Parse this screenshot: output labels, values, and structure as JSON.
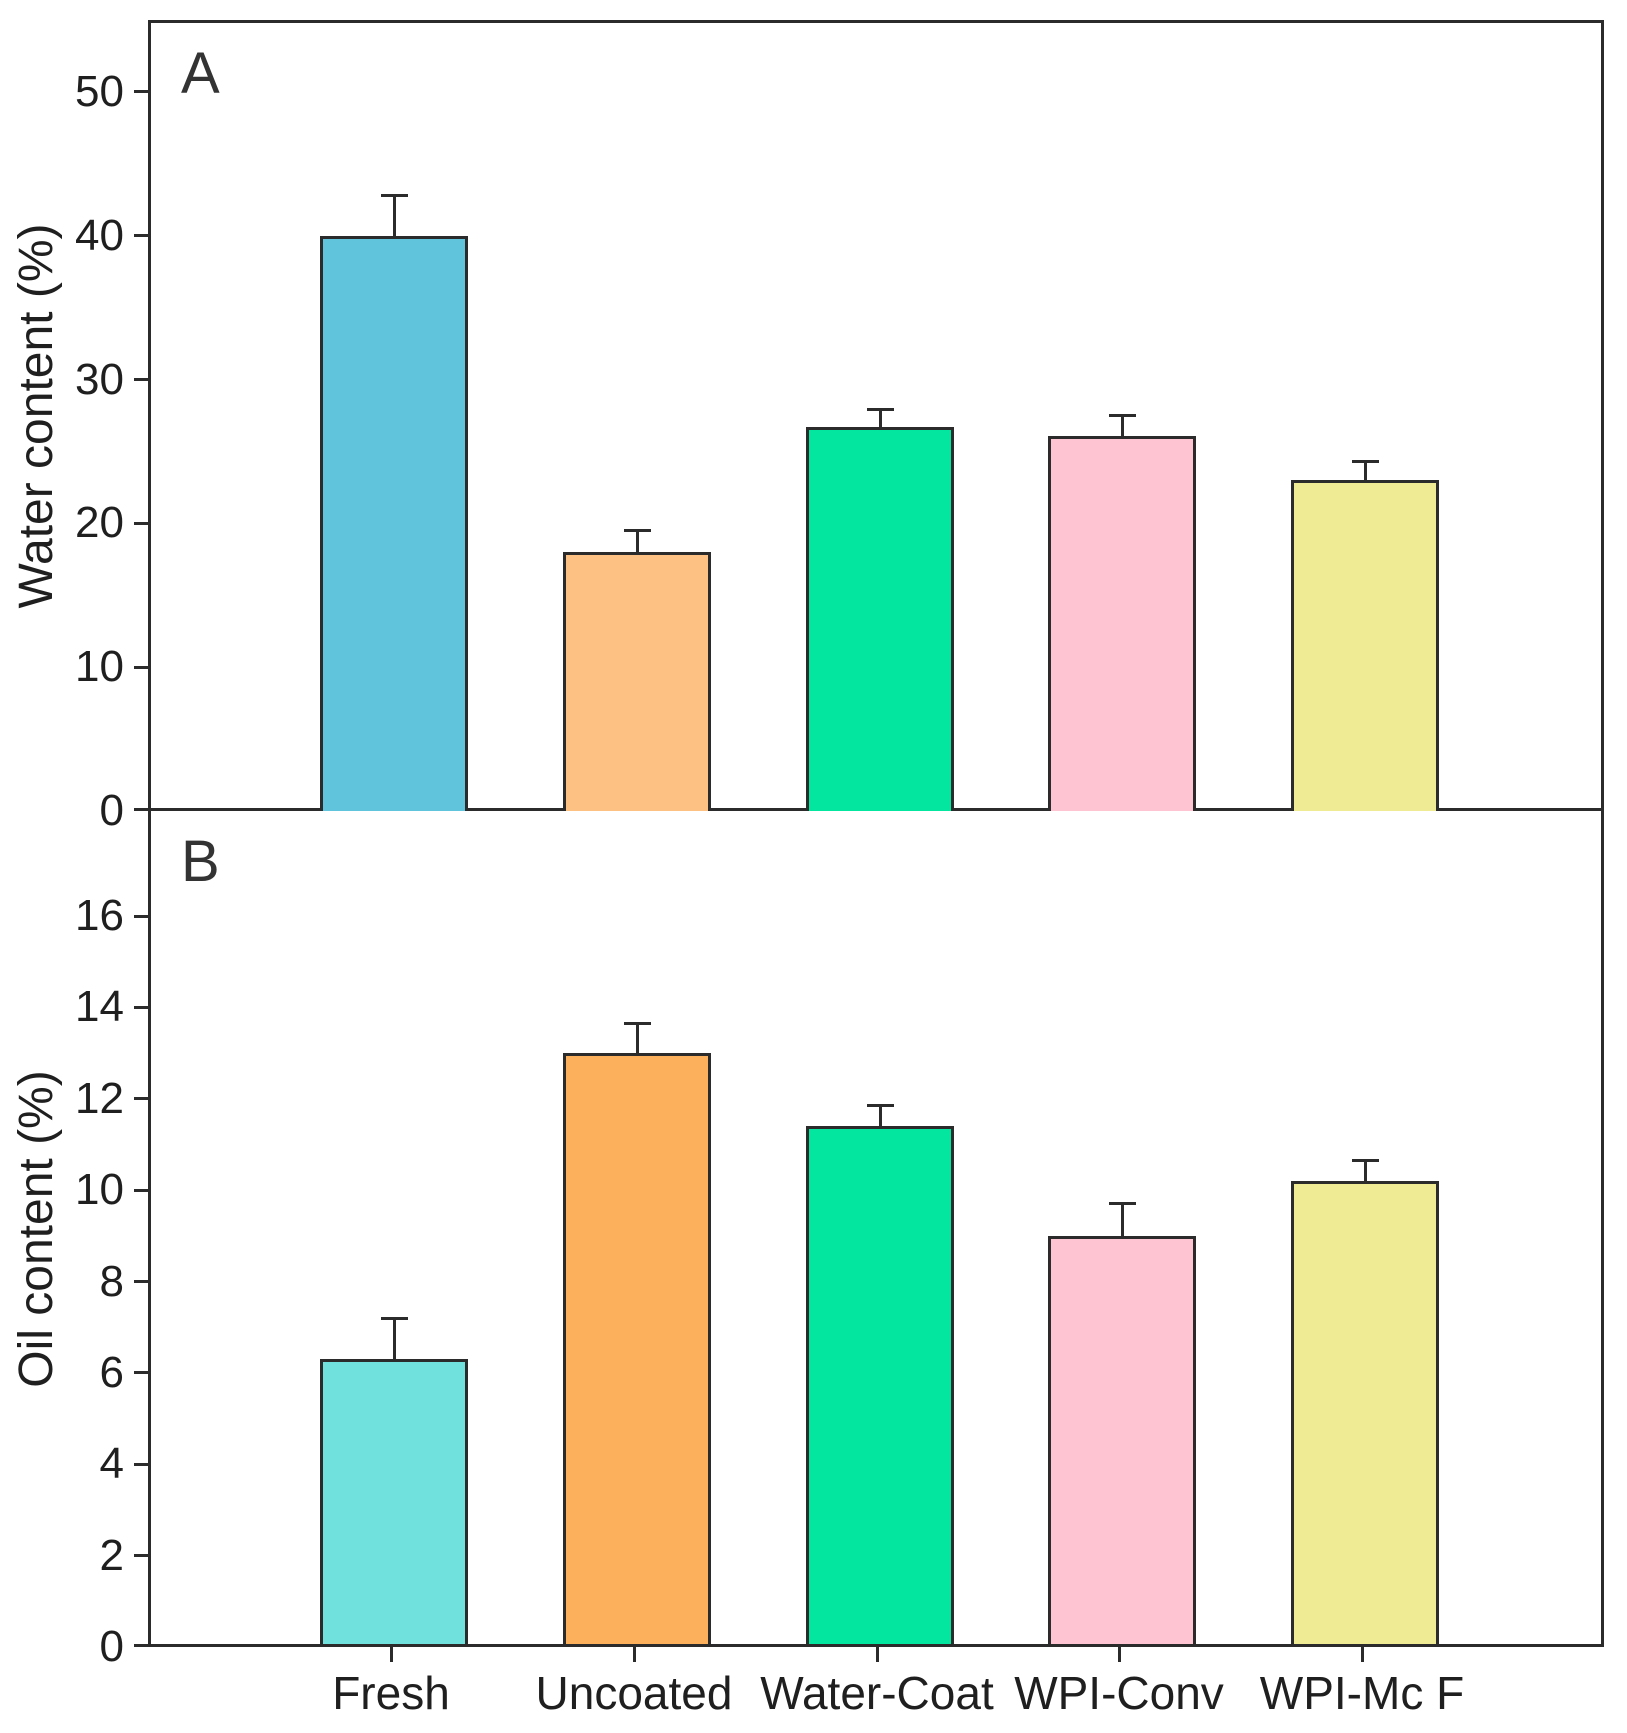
{
  "figure": {
    "background": "#ffffff",
    "axis_color": "#2b2b2b"
  },
  "chart_data": [
    {
      "type": "bar",
      "panel_letter": "A",
      "ylabel": "Water content (%)",
      "xlabel": "",
      "categories": [
        "Fresh",
        "Uncoated",
        "Water-Coat",
        "WPI-Conv",
        "WPI-Mc F"
      ],
      "values": [
        40.2,
        18.2,
        26.9,
        26.3,
        23.2
      ],
      "errors_upper": [
        2.8,
        1.5,
        1.2,
        1.4,
        1.3
      ],
      "bar_colors": [
        "#5FC4DC",
        "#FDC183",
        "#02E6A0",
        "#FEC4D1",
        "#EFEB94"
      ],
      "ylim": [
        0,
        55
      ],
      "yticks": [
        0,
        10,
        20,
        30,
        40,
        50
      ],
      "grid": false,
      "legend": "none",
      "error_bars": "upper-only"
    },
    {
      "type": "bar",
      "panel_letter": "B",
      "ylabel": "Oil content (%)",
      "xlabel": "",
      "categories": [
        "Fresh",
        "Uncoated",
        "Water-Coat",
        "WPI-Conv",
        "WPI-Mc F"
      ],
      "values": [
        6.3,
        13.0,
        11.4,
        9.0,
        10.2
      ],
      "errors_upper": [
        0.9,
        0.65,
        0.45,
        0.7,
        0.45
      ],
      "bar_colors": [
        "#70E1DD",
        "#FDB05C",
        "#02E6A0",
        "#FEC4D1",
        "#EFEB94"
      ],
      "ylim": [
        0,
        18.3
      ],
      "yticks": [
        0,
        2,
        4,
        6,
        8,
        10,
        12,
        14,
        16
      ],
      "grid": false,
      "legend": "none",
      "error_bars": "upper-only"
    }
  ]
}
